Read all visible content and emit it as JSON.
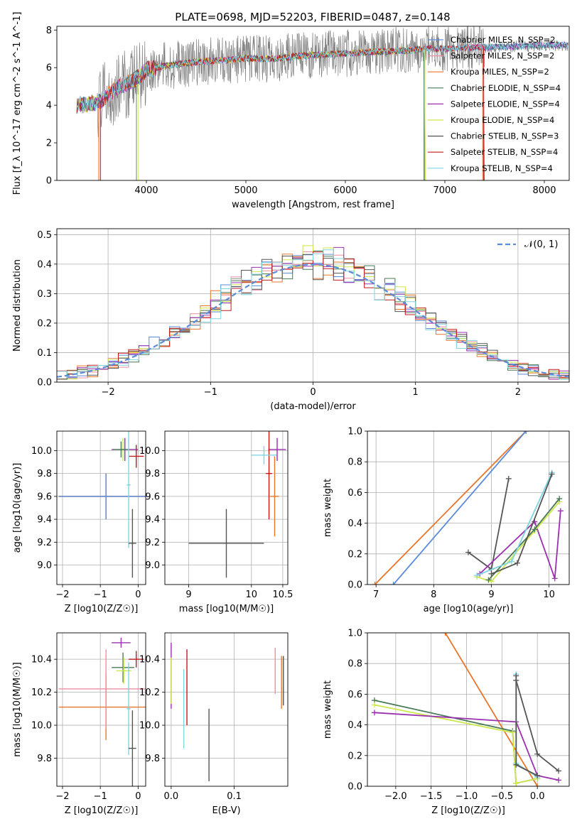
{
  "figure": {
    "title": "PLATE=0698, MJD=52203, FIBERID=0487, z=0.148",
    "colors": {
      "chabrier_miles": "#5b8bd9",
      "salpeter_miles": "#f08ca0",
      "kroupa_miles": "#e8762a",
      "chabrier_elodie": "#4a7a56",
      "salpeter_elodie": "#9a30b0",
      "kroupa_elodie": "#cde84a",
      "chabrier_stelib": "#555555",
      "salpeter_stelib": "#c41a1a",
      "kroupa_stelib": "#7fd4e0",
      "data": "#808080"
    }
  },
  "chart_data": [
    {
      "id": "spectrum",
      "type": "line",
      "xlabel": "wavelength [Angstrom, rest frame]",
      "ylabel": "Flux [f_λ 10^-17 erg cm^-2 s^-1 A^-1]",
      "xlim": [
        3100,
        8250
      ],
      "ylim": [
        0,
        8.2
      ],
      "xticks": [
        "4000",
        "5000",
        "6000",
        "7000",
        "8000"
      ],
      "yticks": [
        "0",
        "2",
        "4",
        "6",
        "8"
      ],
      "grid": false,
      "legend_position": "top-right",
      "legend": [
        "Chabrier MILES, N_SSP=2",
        "Salpeter MILES, N_SSP=2",
        "Kroupa MILES, N_SSP=2",
        "Chabrier ELODIE, N_SSP=4",
        "Salpeter ELODIE, N_SSP=4",
        "Kroupa ELODIE, N_SSP=4",
        "Chabrier STELIB, N_SSP=3",
        "Salpeter STELIB, N_SSP=4",
        "Kroupa STELIB, N_SSP=4"
      ],
      "continuum": {
        "x": [
          3300,
          3500,
          3700,
          3900,
          4000,
          4200,
          4500,
          4800,
          5000,
          5200,
          5500,
          5800,
          6000,
          6300,
          6600,
          6800,
          7000,
          7200,
          7500,
          7800,
          8100,
          8250
        ],
        "y": [
          4.0,
          4.1,
          4.9,
          5.4,
          5.9,
          6.1,
          6.3,
          6.4,
          6.5,
          6.45,
          6.6,
          6.7,
          6.75,
          6.85,
          6.9,
          7.0,
          7.0,
          7.05,
          7.1,
          7.15,
          7.2,
          7.2
        ]
      }
    },
    {
      "id": "residuals",
      "type": "histogram",
      "xlabel": "(data-model)/error",
      "ylabel": "Normed distribution",
      "xlim": [
        -2.5,
        2.5
      ],
      "ylim": [
        0,
        0.52
      ],
      "xticks": [
        "−2",
        "−1",
        "0",
        "1",
        "2"
      ],
      "yticks": [
        "0.0",
        "0.1",
        "0.2",
        "0.3",
        "0.4",
        "0.5"
      ],
      "grid": true,
      "legend_position": "top-right",
      "legend": [
        "𝒩(0, 1)"
      ],
      "bins": 50
    },
    {
      "id": "age_vs_z",
      "type": "errorbar",
      "xlabel": "Z [log10(Z/Z☉)]",
      "ylabel": "age [log10(age/yr)]",
      "xlim": [
        -2.15,
        0.2
      ],
      "ylim": [
        8.83,
        10.17
      ],
      "xticks": [
        "−2",
        "−1",
        "0"
      ],
      "yticks": [
        "9.0",
        "9.2",
        "9.4",
        "9.6",
        "9.8",
        "10.0"
      ],
      "grid": true,
      "points": [
        {
          "x": -0.85,
          "xerr": 1.25,
          "y": 9.6,
          "yerr": 0.2,
          "color": "kroupa_miles"
        },
        {
          "x": -0.85,
          "xerr": 1.25,
          "y": 9.6,
          "yerr": 0.2,
          "color": "chabrier_miles"
        },
        {
          "x": -0.4,
          "xerr": 0.3,
          "y": 10.01,
          "yerr": 0.1,
          "color": "kroupa_elodie"
        },
        {
          "x": -0.35,
          "xerr": 0.35,
          "y": 10.01,
          "yerr": 0.1,
          "color": "salpeter_elodie"
        },
        {
          "x": -0.45,
          "xerr": 0.2,
          "y": 10.01,
          "yerr": 0.07,
          "color": "chabrier_elodie"
        },
        {
          "x": -0.05,
          "xerr": 0.2,
          "y": 9.95,
          "yerr": 0.1,
          "color": "salpeter_stelib"
        },
        {
          "x": -0.25,
          "xerr": 0.05,
          "y": 9.7,
          "yerr": 0.55,
          "color": "kroupa_stelib"
        },
        {
          "x": -0.15,
          "xerr": 0.1,
          "y": 9.19,
          "yerr": 0.3,
          "color": "chabrier_stelib"
        }
      ]
    },
    {
      "id": "age_vs_mass",
      "type": "errorbar",
      "xlabel": "mass [log10(M/M☉)]",
      "xlim": [
        10.6,
        10.55
      ],
      "ylim": [
        8.83,
        10.17
      ],
      "xticks": [
        "9",
        "10",
        "10.5"
      ],
      "yticks": [
        "9.0",
        "9.2",
        "9.4",
        "9.6",
        "9.8",
        "10.0"
      ],
      "grid": true,
      "points": [
        {
          "x": 9.6,
          "xerr": 0.6,
          "y": 9.19,
          "yerr": 0.3,
          "color": "chabrier_stelib"
        },
        {
          "x": 10.37,
          "xerr": 0.07,
          "y": 9.6,
          "yerr": 0.35,
          "color": "kroupa_miles"
        },
        {
          "x": 10.41,
          "xerr": 0.14,
          "y": 10.01,
          "yerr": 0.1,
          "color": "salpeter_elodie"
        },
        {
          "x": 10.28,
          "xerr": 0.05,
          "y": 9.8,
          "yerr": 0.4,
          "color": "salpeter_stelib"
        },
        {
          "x": 10.2,
          "xerr": 0.2,
          "y": 9.96,
          "yerr": 0.08,
          "color": "kroupa_stelib"
        }
      ]
    },
    {
      "id": "weight_vs_age",
      "type": "line",
      "xlabel": "age [log10(age/yr)]",
      "ylabel": "mass weight",
      "xlim": [
        6.85,
        10.35
      ],
      "ylim": [
        0,
        1.0
      ],
      "xticks": [
        "7",
        "8",
        "9",
        "10"
      ],
      "yticks": [
        "0.0",
        "0.2",
        "0.4",
        "0.6",
        "0.8",
        "1.0"
      ],
      "grid": true,
      "series": [
        {
          "color": "kroupa_miles",
          "x": [
            6.98,
            9.6
          ],
          "y": [
            0.0,
            1.0
          ]
        },
        {
          "color": "chabrier_miles",
          "x": [
            7.3,
            9.6
          ],
          "y": [
            0.0,
            1.0
          ]
        },
        {
          "color": "chabrier_stelib",
          "x": [
            8.6,
            9.0,
            9.3
          ],
          "y": [
            0.21,
            0.1,
            0.69
          ]
        },
        {
          "color": "salpeter_elodie",
          "x": [
            8.8,
            9.75,
            10.1,
            10.2
          ],
          "y": [
            0.07,
            0.41,
            0.04,
            0.48
          ]
        },
        {
          "color": "kroupa_elodie",
          "x": [
            8.75,
            9.0,
            9.75,
            10.18
          ],
          "y": [
            0.05,
            0.02,
            0.35,
            0.54
          ]
        },
        {
          "color": "chabrier_elodie",
          "x": [
            8.95,
            9.75,
            10.18
          ],
          "y": [
            0.03,
            0.36,
            0.56
          ]
        },
        {
          "color": "kroupa_stelib",
          "x": [
            8.75,
            9.35,
            10.05
          ],
          "y": [
            0.06,
            0.15,
            0.73
          ]
        },
        {
          "color": "chabrier_stelib",
          "x": [
            9.0,
            9.45,
            10.05
          ],
          "y": [
            0.07,
            0.14,
            0.72
          ]
        }
      ]
    },
    {
      "id": "mass_vs_z",
      "type": "errorbar",
      "xlabel": "Z [log10(Z/Z☉)]",
      "ylabel": "mass [log10(M/M☉)]",
      "xlim": [
        -2.15,
        0.2
      ],
      "ylim": [
        9.63,
        10.56
      ],
      "xticks": [
        "−2",
        "−1",
        "0"
      ],
      "yticks": [
        "9.8",
        "10.0",
        "10.2",
        "10.4"
      ],
      "grid": true,
      "points": [
        {
          "x": -0.85,
          "xerr": 1.25,
          "y": 10.11,
          "yerr": 0.2,
          "color": "kroupa_miles"
        },
        {
          "x": -0.85,
          "xerr": 1.25,
          "y": 10.22,
          "yerr": 0.24,
          "color": "salpeter_miles"
        },
        {
          "x": -0.4,
          "xerr": 0.3,
          "y": 10.35,
          "yerr": 0.09,
          "color": "chabrier_elodie"
        },
        {
          "x": -0.45,
          "xerr": 0.25,
          "y": 10.5,
          "yerr": 0.03,
          "color": "salpeter_elodie"
        },
        {
          "x": -0.38,
          "xerr": 0.2,
          "y": 10.33,
          "yerr": 0.08,
          "color": "kroupa_elodie"
        },
        {
          "x": -0.05,
          "xerr": 0.2,
          "y": 10.4,
          "yerr": 0.05,
          "color": "salpeter_stelib"
        },
        {
          "x": -0.25,
          "xerr": 0.05,
          "y": 10.1,
          "yerr": 0.28,
          "color": "kroupa_stelib"
        },
        {
          "x": -0.15,
          "xerr": 0.1,
          "y": 9.86,
          "yerr": 0.23,
          "color": "chabrier_stelib"
        }
      ]
    },
    {
      "id": "mass_vs_ebv",
      "type": "errorbar",
      "xlabel": "E(B-V)",
      "xlim": [
        -0.01,
        0.185
      ],
      "ylim": [
        9.63,
        10.56
      ],
      "xticks": [
        "0.0",
        "0.1"
      ],
      "yticks": [
        "9.8",
        "10.0",
        "10.2",
        "10.4"
      ],
      "grid": true,
      "points": [
        {
          "x": 0.0,
          "y": 10.3,
          "yerr": 0.2,
          "color": "salpeter_elodie"
        },
        {
          "x": 0.0,
          "y": 10.27,
          "yerr": 0.14,
          "color": "kroupa_elodie"
        },
        {
          "x": 0.02,
          "y": 10.1,
          "yerr": 0.24,
          "color": "kroupa_stelib"
        },
        {
          "x": 0.025,
          "y": 10.23,
          "yerr": 0.23,
          "color": "salpeter_stelib"
        },
        {
          "x": 0.06,
          "y": 9.88,
          "yerr": 0.22,
          "color": "chabrier_stelib"
        },
        {
          "x": 0.165,
          "y": 10.33,
          "yerr": 0.14,
          "color": "salpeter_miles"
        },
        {
          "x": 0.175,
          "y": 10.26,
          "yerr": 0.16,
          "color": "kroupa_miles"
        },
        {
          "x": 0.178,
          "y": 10.27,
          "yerr": 0.15,
          "color": "chabrier_stelib"
        }
      ]
    },
    {
      "id": "weight_vs_z",
      "type": "line",
      "xlabel": "Z [log10(Z/Z☉)]",
      "ylabel": "mass weight",
      "xlim": [
        -2.4,
        0.45
      ],
      "ylim": [
        0,
        1.0
      ],
      "xticks": [
        "−2.0",
        "−1.5",
        "−1.0",
        "−0.5",
        "0.0"
      ],
      "yticks": [
        "0.0",
        "0.2",
        "0.4",
        "0.6",
        "0.8",
        "1.0"
      ],
      "grid": true,
      "series": [
        {
          "color": "kroupa_miles",
          "x": [
            -1.3,
            0.0
          ],
          "y": [
            1.0,
            0.0
          ]
        },
        {
          "color": "chabrier_elodie",
          "x": [
            -2.3,
            -0.35,
            -0.3,
            0.0
          ],
          "y": [
            0.56,
            0.36,
            0.02,
            0.05
          ]
        },
        {
          "color": "kroupa_elodie",
          "x": [
            -2.3,
            -0.35,
            -0.3,
            0.0
          ],
          "y": [
            0.53,
            0.35,
            0.02,
            0.05
          ]
        },
        {
          "color": "salpeter_elodie",
          "x": [
            -2.3,
            -0.3,
            0.0,
            0.3
          ],
          "y": [
            0.48,
            0.42,
            0.07,
            0.04
          ]
        },
        {
          "color": "chabrier_stelib",
          "x": [
            -0.3,
            0.0,
            0.3
          ],
          "y": [
            0.69,
            0.21,
            0.1
          ]
        },
        {
          "color": "kroupa_stelib",
          "x": [
            -0.3,
            -0.3,
            0.0
          ],
          "y": [
            0.73,
            0.15,
            0.06
          ]
        },
        {
          "color": "chabrier_stelib",
          "x": [
            -0.3,
            -0.3,
            0.0
          ],
          "y": [
            0.72,
            0.14,
            0.07
          ]
        }
      ]
    }
  ]
}
